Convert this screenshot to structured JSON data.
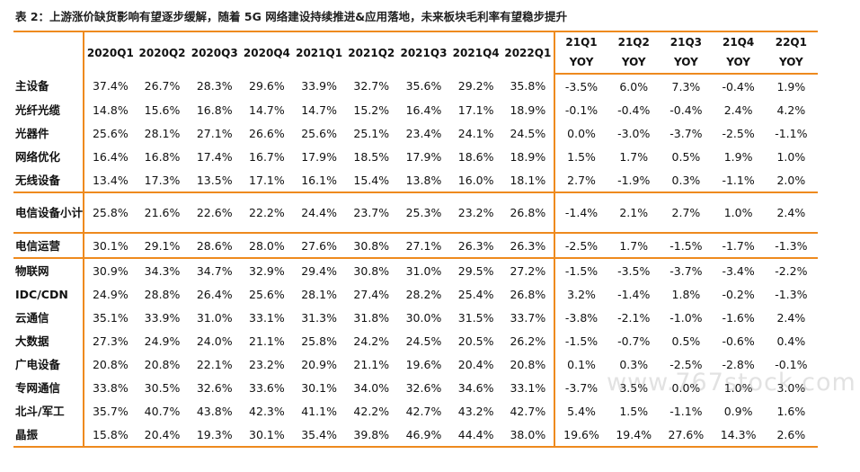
{
  "caption": "表 2：上游涨价缺货影响有望逐步缓解，随着 5G 网络建设持续推进&应用落地，未来板块毛利率有望稳步提升",
  "quarter_headers": [
    "2020Q1",
    "2020Q2",
    "2020Q3",
    "2020Q4",
    "2021Q1",
    "2021Q2",
    "2021Q3",
    "2021Q4",
    "2022Q1"
  ],
  "yoy_headers": [
    {
      "top": "21Q1",
      "bottom": "YOY"
    },
    {
      "top": "21Q2",
      "bottom": "YOY"
    },
    {
      "top": "21Q3",
      "bottom": "YOY"
    },
    {
      "top": "21Q4",
      "bottom": "YOY"
    },
    {
      "top": "22Q1",
      "bottom": "YOY"
    }
  ],
  "rows": [
    {
      "label": "主设备",
      "values": [
        "37.4%",
        "26.7%",
        "28.3%",
        "29.6%",
        "33.9%",
        "32.7%",
        "35.6%",
        "29.2%",
        "35.8%"
      ],
      "yoy": [
        "-3.5%",
        "6.0%",
        "7.3%",
        "-0.4%",
        "1.9%"
      ]
    },
    {
      "label": "光纤光缆",
      "values": [
        "14.8%",
        "15.6%",
        "16.8%",
        "14.7%",
        "14.7%",
        "15.2%",
        "16.4%",
        "17.1%",
        "18.9%"
      ],
      "yoy": [
        "-0.1%",
        "-0.4%",
        "-0.4%",
        "2.4%",
        "4.2%"
      ]
    },
    {
      "label": "光器件",
      "values": [
        "25.6%",
        "28.1%",
        "27.1%",
        "26.6%",
        "25.6%",
        "25.1%",
        "23.4%",
        "24.1%",
        "24.5%"
      ],
      "yoy": [
        "0.0%",
        "-3.0%",
        "-3.7%",
        "-2.5%",
        "-1.1%"
      ]
    },
    {
      "label": "网络优化",
      "values": [
        "16.4%",
        "16.8%",
        "17.4%",
        "16.7%",
        "17.9%",
        "18.5%",
        "17.9%",
        "18.6%",
        "18.9%"
      ],
      "yoy": [
        "1.5%",
        "1.7%",
        "0.5%",
        "1.9%",
        "1.0%"
      ]
    },
    {
      "label": "无线设备",
      "values": [
        "13.4%",
        "17.3%",
        "13.5%",
        "17.1%",
        "16.1%",
        "15.4%",
        "13.8%",
        "16.0%",
        "18.1%"
      ],
      "yoy": [
        "2.7%",
        "-1.9%",
        "0.3%",
        "-1.1%",
        "2.0%"
      ]
    },
    {
      "label": "电信设备小计",
      "values": [
        "25.8%",
        "21.6%",
        "22.6%",
        "22.2%",
        "24.4%",
        "23.7%",
        "25.3%",
        "23.2%",
        "26.8%"
      ],
      "yoy": [
        "-1.4%",
        "2.1%",
        "2.7%",
        "1.0%",
        "2.4%"
      ]
    },
    {
      "label": "电信运营",
      "values": [
        "30.1%",
        "29.1%",
        "28.6%",
        "28.0%",
        "27.6%",
        "30.8%",
        "27.1%",
        "26.3%",
        "26.3%"
      ],
      "yoy": [
        "-2.5%",
        "1.7%",
        "-1.5%",
        "-1.7%",
        "-1.3%"
      ]
    },
    {
      "label": "物联网",
      "values": [
        "30.9%",
        "34.3%",
        "34.7%",
        "32.9%",
        "29.4%",
        "30.8%",
        "31.0%",
        "29.5%",
        "27.2%"
      ],
      "yoy": [
        "-1.5%",
        "-3.5%",
        "-3.7%",
        "-3.4%",
        "-2.2%"
      ]
    },
    {
      "label": "IDC/CDN",
      "values": [
        "24.9%",
        "28.8%",
        "26.4%",
        "25.6%",
        "28.1%",
        "27.4%",
        "28.2%",
        "25.4%",
        "26.8%"
      ],
      "yoy": [
        "3.2%",
        "-1.4%",
        "1.8%",
        "-0.2%",
        "-1.3%"
      ]
    },
    {
      "label": "云通信",
      "values": [
        "35.1%",
        "33.9%",
        "31.0%",
        "33.1%",
        "31.3%",
        "31.8%",
        "30.0%",
        "31.5%",
        "33.7%"
      ],
      "yoy": [
        "-3.8%",
        "-2.1%",
        "-1.0%",
        "-1.6%",
        "2.4%"
      ]
    },
    {
      "label": "大数据",
      "values": [
        "27.3%",
        "24.9%",
        "24.0%",
        "21.1%",
        "25.8%",
        "24.2%",
        "24.5%",
        "20.5%",
        "26.2%"
      ],
      "yoy": [
        "-1.5%",
        "-0.7%",
        "0.5%",
        "-0.6%",
        "0.4%"
      ]
    },
    {
      "label": "广电设备",
      "values": [
        "20.8%",
        "20.8%",
        "22.1%",
        "23.2%",
        "20.9%",
        "21.1%",
        "19.6%",
        "20.4%",
        "20.8%"
      ],
      "yoy": [
        "0.1%",
        "0.3%",
        "-2.5%",
        "-2.8%",
        "-0.1%"
      ]
    },
    {
      "label": "专网通信",
      "values": [
        "33.8%",
        "30.5%",
        "32.6%",
        "33.6%",
        "30.1%",
        "34.0%",
        "32.6%",
        "34.6%",
        "33.1%"
      ],
      "yoy": [
        "-3.7%",
        "3.5%",
        "0.0%",
        "1.0%",
        "3.0%"
      ]
    },
    {
      "label": "北斗/军工",
      "values": [
        "35.7%",
        "40.7%",
        "43.8%",
        "42.3%",
        "41.1%",
        "42.2%",
        "42.7%",
        "43.2%",
        "42.7%"
      ],
      "yoy": [
        "5.4%",
        "1.5%",
        "-1.1%",
        "0.9%",
        "1.6%"
      ]
    },
    {
      "label": "晶振",
      "values": [
        "15.8%",
        "20.4%",
        "19.3%",
        "30.1%",
        "35.4%",
        "39.8%",
        "46.9%",
        "44.4%",
        "38.0%"
      ],
      "yoy": [
        "19.6%",
        "19.4%",
        "27.6%",
        "14.3%",
        "2.6%"
      ]
    }
  ],
  "watermark": "www.767stock.com"
}
